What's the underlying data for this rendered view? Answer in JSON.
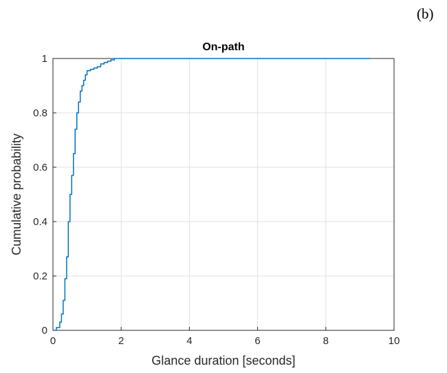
{
  "panel_label": "(b)",
  "chart_data": {
    "type": "line",
    "title": "On-path",
    "xlabel": "Glance duration [seconds]",
    "ylabel": "Cumulative probability",
    "xlim": [
      0,
      10
    ],
    "ylim": [
      0,
      1
    ],
    "xticks": [
      0,
      2,
      4,
      6,
      8,
      10
    ],
    "xtick_labels": [
      "0",
      "2",
      "4",
      "6",
      "8",
      "10"
    ],
    "yticks": [
      0,
      0.2,
      0.4,
      0.6,
      0.8,
      1
    ],
    "ytick_labels": [
      "0",
      "0.2",
      "0.4",
      "0.6",
      "0.8",
      "1"
    ],
    "grid": true,
    "step": true,
    "line_color": "#0072BD",
    "series": [
      {
        "name": "",
        "x": [
          0,
          0.1,
          0.2,
          0.25,
          0.3,
          0.35,
          0.4,
          0.45,
          0.5,
          0.55,
          0.6,
          0.65,
          0.7,
          0.75,
          0.8,
          0.85,
          0.9,
          0.95,
          1.0,
          1.1,
          1.2,
          1.3,
          1.4,
          1.5,
          1.6,
          1.7,
          1.8,
          2.0,
          9.3
        ],
        "y": [
          0,
          0.01,
          0.03,
          0.06,
          0.11,
          0.19,
          0.27,
          0.4,
          0.5,
          0.57,
          0.65,
          0.74,
          0.8,
          0.84,
          0.88,
          0.9,
          0.92,
          0.94,
          0.955,
          0.96,
          0.965,
          0.97,
          0.98,
          0.985,
          0.99,
          0.995,
          1.0,
          1.0,
          1.0
        ]
      }
    ]
  }
}
